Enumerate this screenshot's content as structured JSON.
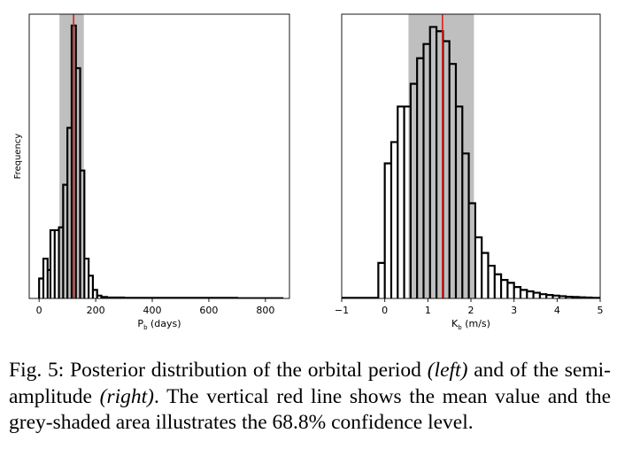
{
  "chart_data": [
    {
      "type": "histogram",
      "title": "",
      "xlabel_main": "P",
      "xlabel_sub": "b",
      "xlabel_rest": " (days)",
      "ylabel": "Frequency",
      "xlim": [
        -35,
        885
      ],
      "ylim": [
        0,
        1.0
      ],
      "xticks": [
        "0",
        "200",
        "400",
        "600",
        "800"
      ],
      "xtick_values": [
        0,
        200,
        400,
        600,
        800
      ],
      "show_yticks": false,
      "bin_edges": [
        0,
        15,
        30,
        40,
        55,
        70,
        85,
        100,
        115,
        130,
        145,
        160,
        175,
        190,
        205,
        220,
        240,
        300,
        500,
        700,
        860
      ],
      "frequencies": [
        0.07,
        0.14,
        0.1,
        0.24,
        0.24,
        0.25,
        0.4,
        0.6,
        0.96,
        0.81,
        0.45,
        0.14,
        0.08,
        0.03,
        0.01,
        0.005,
        0.003,
        0.002,
        0.002,
        0.001
      ],
      "mean": 122,
      "ci": [
        72,
        158
      ],
      "colors": {
        "hist": "#000000",
        "mean_line": "#e41a1c",
        "ci_band": "#bfbfbf"
      }
    },
    {
      "type": "histogram",
      "title": "",
      "xlabel_main": "K",
      "xlabel_sub": "b",
      "xlabel_rest": " (m/s)",
      "ylabel": "",
      "xlim": [
        -1,
        5
      ],
      "ylim": [
        0,
        1.0
      ],
      "xticks": [
        "−1",
        "0",
        "1",
        "2",
        "3",
        "4",
        "5"
      ],
      "xtick_values": [
        -1,
        0,
        1,
        2,
        3,
        4,
        5
      ],
      "show_yticks": false,
      "bin_edges": [
        -1.0,
        -0.15,
        0.0,
        0.15,
        0.3,
        0.45,
        0.6,
        0.75,
        0.9,
        1.05,
        1.2,
        1.35,
        1.5,
        1.65,
        1.8,
        1.95,
        2.1,
        2.25,
        2.4,
        2.55,
        2.7,
        2.85,
        3.0,
        3.15,
        3.3,
        3.45,
        3.6,
        3.75,
        3.9,
        4.05,
        4.2,
        4.35,
        4.5,
        4.65,
        4.8,
        5.0
      ],
      "frequencies": [
        0.002,
        0.125,
        0.475,
        0.55,
        0.675,
        0.675,
        0.755,
        0.845,
        0.895,
        0.955,
        0.94,
        0.905,
        0.825,
        0.675,
        0.51,
        0.335,
        0.215,
        0.16,
        0.115,
        0.085,
        0.065,
        0.055,
        0.04,
        0.03,
        0.025,
        0.02,
        0.015,
        0.012,
        0.01,
        0.008,
        0.006,
        0.005,
        0.004,
        0.003,
        0.002
      ],
      "mean": 1.34,
      "ci": [
        0.55,
        2.07
      ],
      "colors": {
        "hist": "#000000",
        "mean_line": "#e41a1c",
        "ci_band": "#bfbfbf"
      }
    }
  ],
  "caption": {
    "prefix": "Fig. 5: Posterior distribution of the orbital period ",
    "left_italic": "(left)",
    "middle": " and of the semi-amplitude ",
    "right_italic": "(right)",
    "suffix": ". The vertical red line shows the mean value and the grey-shaded area illustrates the 68.8% confidence level."
  }
}
